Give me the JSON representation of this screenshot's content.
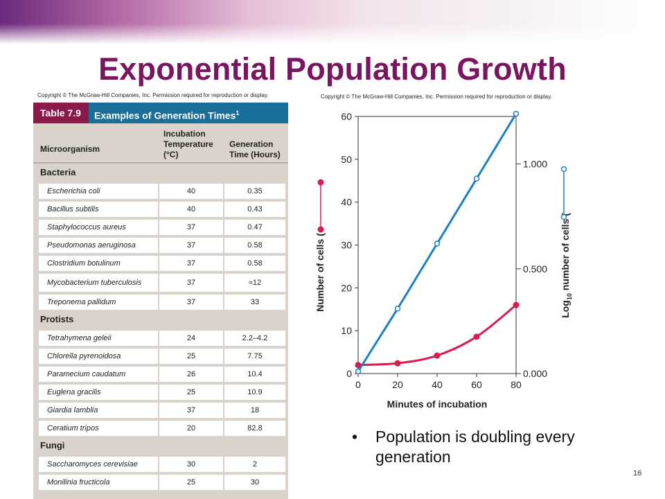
{
  "slide": {
    "title": "Exponential Population Growth",
    "page_number": "16",
    "bullet": "Population is doubling every generation"
  },
  "table": {
    "copyright": "Copyright © The McGraw-Hill Companies, Inc. Permission required for reproduction or display.",
    "number": "Table 7.9",
    "caption": "Examples of Generation Times",
    "caption_sup": "1",
    "columns": [
      "Microorganism",
      "Incubation Temperature (°C)",
      "Generation Time (Hours)"
    ],
    "sections": [
      {
        "name": "Bacteria",
        "rows": [
          [
            "Escherichia coli",
            "40",
            "0.35"
          ],
          [
            "Bacillus subtilis",
            "40",
            "0.43"
          ],
          [
            "Staphylococcus aureus",
            "37",
            "0.47"
          ],
          [
            "Pseudomonas aeruginosa",
            "37",
            "0.58"
          ],
          [
            "Clostridium botulinum",
            "37",
            "0.58"
          ],
          [
            "Mycobacterium tuberculosis",
            "37",
            "≈12"
          ],
          [
            "Treponema pallidum",
            "37",
            "33"
          ]
        ]
      },
      {
        "name": "Protists",
        "rows": [
          [
            "Tetrahymena geleii",
            "24",
            "2.2–4.2"
          ],
          [
            "Chlorella pyrenoidosa",
            "25",
            "7.75"
          ],
          [
            "Paramecium caudatum",
            "26",
            "10.4"
          ],
          [
            "Euglena gracilis",
            "25",
            "10.9"
          ],
          [
            "Giardia lamblia",
            "37",
            "18"
          ],
          [
            "Ceratium tripos",
            "20",
            "82.8"
          ]
        ]
      },
      {
        "name": "Fungi",
        "rows": [
          [
            "Saccharomyces cerevisiae",
            "30",
            "2"
          ],
          [
            "Monilinia fructicola",
            "25",
            "30"
          ]
        ]
      }
    ]
  },
  "chart_data": {
    "type": "line",
    "copyright": "Copyright © The McGraw-Hill Companies, Inc. Permission required for reproduction or display.",
    "xlabel": "Minutes of incubation",
    "ylabel_left": "Number of cells (",
    "ylabel_right_pre": "Log",
    "ylabel_right_sub": "10",
    "ylabel_right_post": " number of cells (",
    "x_ticks": [
      "0",
      "20",
      "40",
      "60",
      "80"
    ],
    "y_left_ticks": [
      "0",
      "10",
      "20",
      "30",
      "40",
      "50",
      "60"
    ],
    "y_right_ticks": [
      "0.000",
      "0.500",
      "1.000"
    ],
    "xlim": [
      0,
      80
    ],
    "ylim_left": [
      0,
      60
    ],
    "ylim_right": [
      0,
      1.227
    ],
    "series": [
      {
        "axis": "left",
        "color": "#d81b50",
        "marker": "filled-circle",
        "x": [
          0,
          20,
          40,
          60,
          80
        ],
        "y": [
          2,
          2.4,
          4.2,
          8.6,
          16
        ]
      },
      {
        "axis": "right",
        "color": "#1b7fc4",
        "marker": "open-circle",
        "x": [
          0,
          20,
          40,
          60,
          80
        ],
        "y": [
          0.01,
          0.31,
          0.62,
          0.93,
          1.24
        ]
      }
    ]
  }
}
